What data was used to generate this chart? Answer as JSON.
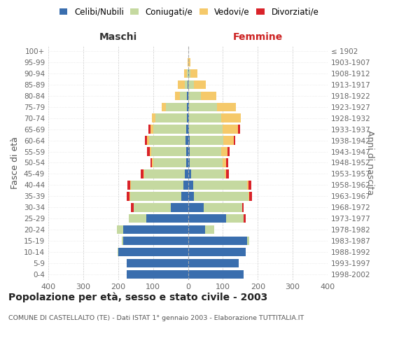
{
  "age_groups": [
    "0-4",
    "5-9",
    "10-14",
    "15-19",
    "20-24",
    "25-29",
    "30-34",
    "35-39",
    "40-44",
    "45-49",
    "50-54",
    "55-59",
    "60-64",
    "65-69",
    "70-74",
    "75-79",
    "80-84",
    "85-89",
    "90-94",
    "95-99",
    "100+"
  ],
  "birth_years": [
    "1998-2002",
    "1993-1997",
    "1988-1992",
    "1983-1987",
    "1978-1982",
    "1973-1977",
    "1968-1972",
    "1963-1967",
    "1958-1962",
    "1953-1957",
    "1948-1952",
    "1943-1947",
    "1938-1942",
    "1933-1937",
    "1928-1932",
    "1923-1927",
    "1918-1922",
    "1913-1917",
    "1908-1912",
    "1903-1907",
    "≤ 1902"
  ],
  "maschi": {
    "celibi": [
      175,
      175,
      200,
      185,
      185,
      120,
      50,
      20,
      13,
      10,
      5,
      6,
      7,
      5,
      4,
      4,
      3,
      2,
      0,
      0,
      0
    ],
    "coniugati": [
      0,
      0,
      2,
      4,
      18,
      50,
      105,
      145,
      150,
      115,
      95,
      100,
      105,
      95,
      90,
      60,
      20,
      8,
      3,
      0,
      0
    ],
    "vedovi": [
      0,
      0,
      0,
      0,
      0,
      0,
      0,
      2,
      2,
      2,
      3,
      4,
      5,
      8,
      10,
      12,
      15,
      20,
      8,
      2,
      0
    ],
    "divorziati": [
      0,
      0,
      0,
      0,
      0,
      0,
      8,
      8,
      8,
      8,
      5,
      7,
      7,
      6,
      0,
      0,
      0,
      0,
      0,
      0,
      0
    ]
  },
  "femmine": {
    "nubili": [
      160,
      145,
      165,
      170,
      50,
      110,
      45,
      18,
      15,
      10,
      5,
      6,
      6,
      4,
      3,
      3,
      2,
      2,
      3,
      0,
      0
    ],
    "coniugate": [
      0,
      0,
      0,
      5,
      25,
      50,
      110,
      155,
      155,
      95,
      95,
      90,
      95,
      95,
      93,
      80,
      35,
      15,
      5,
      2,
      0
    ],
    "vedove": [
      0,
      0,
      0,
      0,
      0,
      0,
      0,
      3,
      3,
      5,
      10,
      18,
      30,
      45,
      55,
      55,
      45,
      35,
      20,
      5,
      0
    ],
    "divorziate": [
      0,
      0,
      0,
      0,
      0,
      5,
      5,
      8,
      8,
      8,
      5,
      5,
      5,
      5,
      0,
      0,
      0,
      0,
      0,
      0,
      0
    ]
  },
  "colors": {
    "celibi": "#3a6eae",
    "coniugati": "#c5d9a0",
    "vedovi": "#f5c96a",
    "divorziati": "#d9232a"
  },
  "xlim": 400,
  "title": "Popolazione per età, sesso e stato civile - 2003",
  "subtitle": "COMUNE DI CASTELLALTO (TE) - Dati ISTAT 1° gennaio 2003 - Elaborazione TUTTITALIA.IT",
  "ylabel_left": "Fasce di età",
  "ylabel_right": "Anni di nascita",
  "xlabel_maschi": "Maschi",
  "xlabel_femmine": "Femmine",
  "legend_labels": [
    "Celibi/Nubili",
    "Coniugati/e",
    "Vedovi/e",
    "Divorziati/e"
  ]
}
